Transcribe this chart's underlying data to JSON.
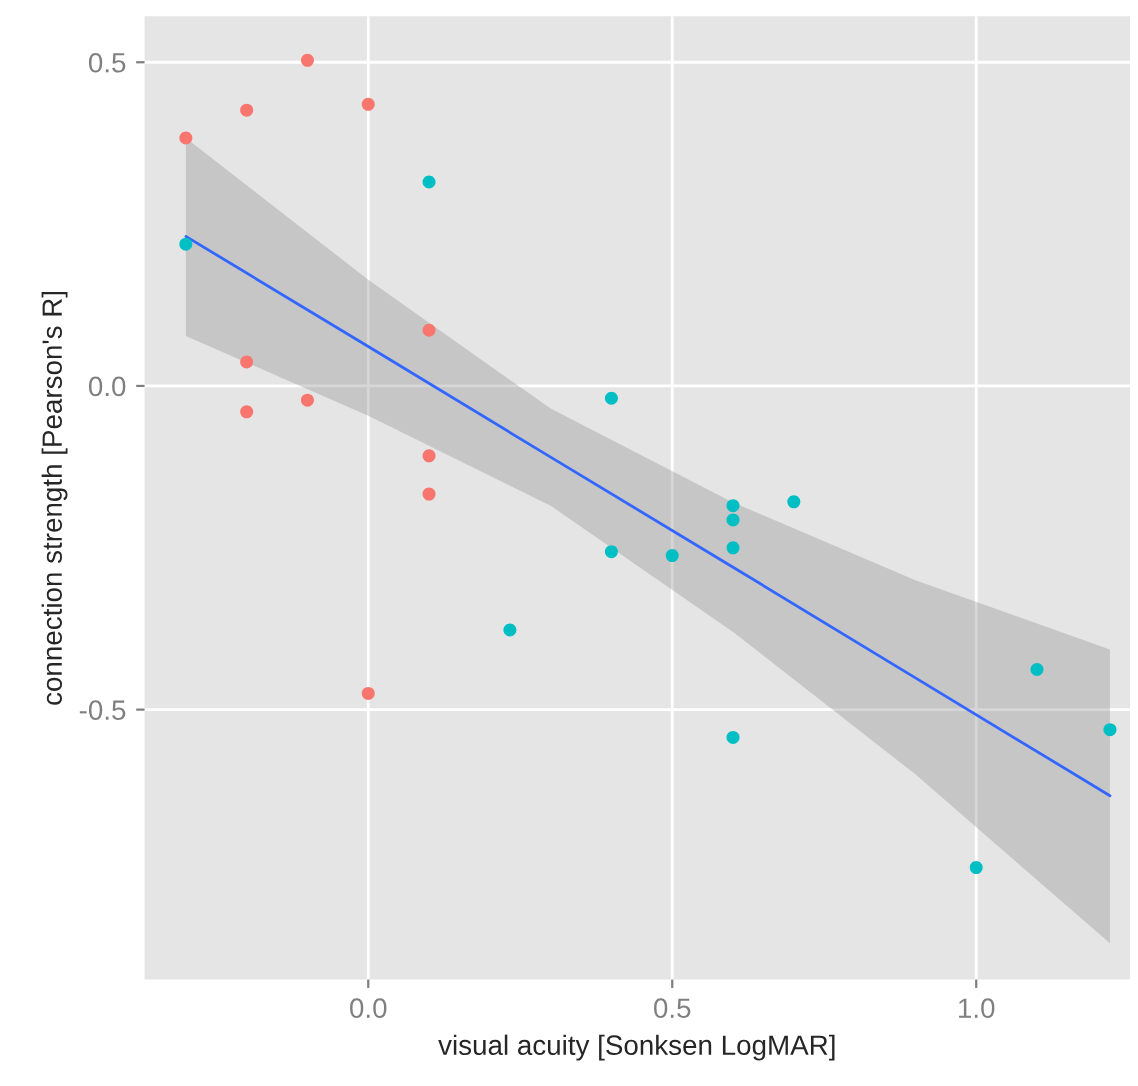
{
  "chart_data": {
    "type": "scatter",
    "xlabel": "visual acuity [Sonksen LogMAR]",
    "ylabel": "connection strength [Pearson's R]",
    "xlim": [
      -0.368,
      1.253
    ],
    "ylim": [
      -0.917,
      0.571
    ],
    "xticks": [
      {
        "value": 0,
        "label": "0.0"
      },
      {
        "value": 0.5,
        "label": "0.5"
      },
      {
        "value": 1.0,
        "label": "1.0"
      }
    ],
    "yticks": [
      {
        "value": -0.5,
        "label": "-0.5"
      },
      {
        "value": 0,
        "label": "0.0"
      },
      {
        "value": 0.5,
        "label": "0.5"
      }
    ],
    "grid": true,
    "series": [
      {
        "marker": "circle",
        "color": "#f8766d",
        "x": [
          -0.3,
          -0.2,
          -0.1,
          0,
          0.1,
          -0.2,
          -0.2,
          -0.1,
          0.1,
          0.1,
          0
        ],
        "values": [
          0.383,
          0.426,
          0.503,
          0.435,
          0.086,
          0.037,
          -0.04,
          -0.022,
          -0.108,
          -0.167,
          -0.475
        ]
      },
      {
        "marker": "circle",
        "color": "#00bfc4",
        "x": [
          -0.3,
          0.1,
          0.4,
          0.4,
          0.5,
          0.6,
          0.6,
          0.6,
          0.7,
          0.233,
          0.6,
          1.0,
          1.1,
          1.22
        ],
        "values": [
          0.219,
          0.315,
          -0.019,
          -0.256,
          -0.262,
          -0.185,
          -0.207,
          -0.25,
          -0.179,
          -0.377,
          -0.543,
          -0.744,
          -0.438,
          -0.531
        ]
      },
      {
        "type": "line",
        "color": "#3366ff",
        "x": [
          -0.3,
          0,
          0.3,
          0.6,
          0.9,
          1.22
        ],
        "values": [
          0.231,
          0.061,
          -0.11,
          -0.28,
          -0.451,
          -0.633
        ],
        "lower": [
          0.077,
          -0.046,
          -0.185,
          -0.38,
          -0.6,
          -0.861
        ],
        "upper": [
          0.383,
          0.164,
          -0.035,
          -0.18,
          -0.3,
          -0.407
        ]
      }
    ]
  }
}
